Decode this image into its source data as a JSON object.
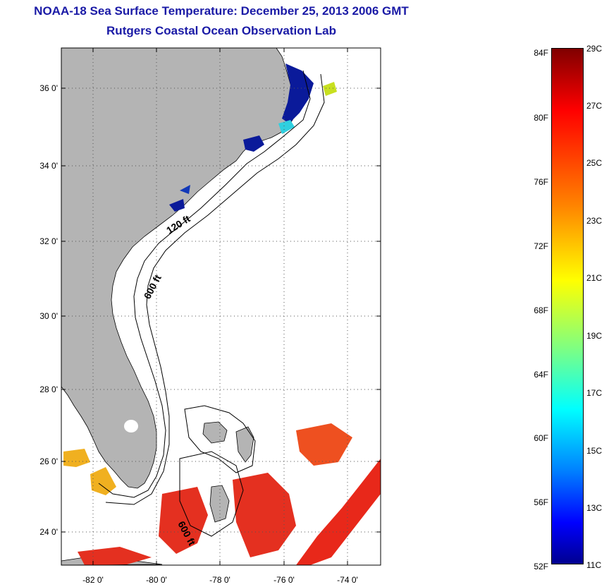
{
  "title": {
    "line1": "NOAA-18 Sea Surface Temperature:  December 25, 2013 2006 GMT",
    "line2": "Rutgers Coastal Ocean Observation Lab"
  },
  "map": {
    "latitude_labels": [
      "36 0'",
      "34 0'",
      "32 0'",
      "30 0'",
      "28 0'",
      "26 0'",
      "24 0'"
    ],
    "longitude_labels": [
      "-82 0'",
      "-80 0'",
      "-78 0'",
      "-76 0'",
      "-74 0'"
    ],
    "isobath_labels": [
      "120 ft",
      "600 ft",
      "600 ft"
    ],
    "colors": {
      "land": "#b4b4b4",
      "no_data": "#ffffff",
      "cold_water": "#0a1a9a",
      "warm_water": "#e8281a"
    }
  },
  "colorbar": {
    "fahrenheit_labels": [
      "84F",
      "80F",
      "76F",
      "72F",
      "68F",
      "64F",
      "60F",
      "56F",
      "52F"
    ],
    "celsius_labels": [
      "29C",
      "27C",
      "25C",
      "23C",
      "21C",
      "19C",
      "17C",
      "15C",
      "13C",
      "11C"
    ],
    "range_celsius": [
      11,
      29
    ],
    "colormap": "jet"
  }
}
